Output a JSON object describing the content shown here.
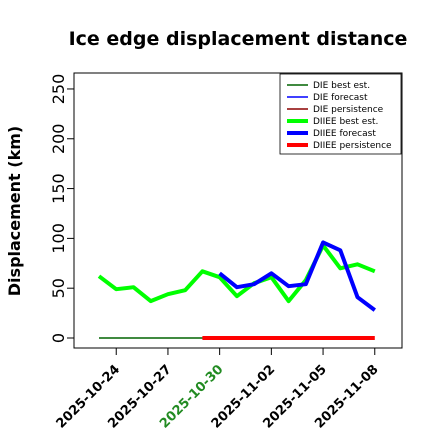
{
  "chart_data": {
    "type": "line",
    "title": "Ice edge displacement distance",
    "xlabel": "",
    "ylabel": "Displacement (km)",
    "ylim": [
      0,
      260
    ],
    "xlim": [
      "2025-10-23",
      "2025-11-09"
    ],
    "yticks": [
      "0",
      "50",
      "100",
      "150",
      "200",
      "250"
    ],
    "xticks": [
      {
        "date": "2025-10-24",
        "label": "2025-10-24",
        "color": "#000000"
      },
      {
        "date": "2025-10-27",
        "label": "2025-10-27",
        "color": "#000000"
      },
      {
        "date": "2025-10-30",
        "label": "2025-10-30",
        "color": "#228B22"
      },
      {
        "date": "2025-11-02",
        "label": "2025-11-02",
        "color": "#000000"
      },
      {
        "date": "2025-11-05",
        "label": "2025-11-05",
        "color": "#000000"
      },
      {
        "date": "2025-11-08",
        "label": "2025-11-08",
        "color": "#000000"
      }
    ],
    "grid": false,
    "legend_position": "top-right",
    "series": [
      {
        "name": "DIE best est.",
        "color": "#006400",
        "width": "thin",
        "x": [
          "2025-10-23",
          "2025-10-24",
          "2025-10-25",
          "2025-10-26",
          "2025-10-27",
          "2025-10-28",
          "2025-10-29",
          "2025-10-30"
        ],
        "values": [
          0,
          0,
          0,
          0,
          0,
          0,
          0,
          0
        ]
      },
      {
        "name": "DIE forecast",
        "color": "#0000FF",
        "width": "thin",
        "x": [],
        "values": []
      },
      {
        "name": "DIE persistence",
        "color": "#8B0000",
        "width": "thin",
        "x": [],
        "values": []
      },
      {
        "name": "DIIEE best est.",
        "color": "#00FF00",
        "width": "thick",
        "x": [
          "2025-10-23",
          "2025-10-24",
          "2025-10-25",
          "2025-10-26",
          "2025-10-27",
          "2025-10-28",
          "2025-10-29",
          "2025-10-30",
          "2025-10-31",
          "2025-11-01",
          "2025-11-02",
          "2025-11-03",
          "2025-11-04",
          "2025-11-05",
          "2025-11-06",
          "2025-11-07",
          "2025-11-08"
        ],
        "values": [
          62,
          49,
          51,
          37,
          44,
          48,
          67,
          61,
          42,
          55,
          61,
          37,
          58,
          93,
          70,
          74,
          67
        ]
      },
      {
        "name": "DIIEE forecast",
        "color": "#0000FF",
        "width": "thick",
        "x": [
          "2025-10-30",
          "2025-10-31",
          "2025-11-01",
          "2025-11-02",
          "2025-11-03",
          "2025-11-04",
          "2025-11-05",
          "2025-11-06",
          "2025-11-07",
          "2025-11-08"
        ],
        "values": [
          65,
          51,
          54,
          65,
          52,
          54,
          96,
          88,
          41,
          28
        ]
      },
      {
        "name": "DIIEE persistence",
        "color": "#FF0000",
        "width": "thick",
        "x": [
          "2025-10-29",
          "2025-10-30",
          "2025-10-31",
          "2025-11-01",
          "2025-11-02",
          "2025-11-03",
          "2025-11-04",
          "2025-11-05",
          "2025-11-06",
          "2025-11-07",
          "2025-11-08"
        ],
        "values": [
          0,
          0,
          0,
          0,
          0,
          0,
          0,
          0,
          0,
          0,
          0
        ]
      }
    ]
  }
}
